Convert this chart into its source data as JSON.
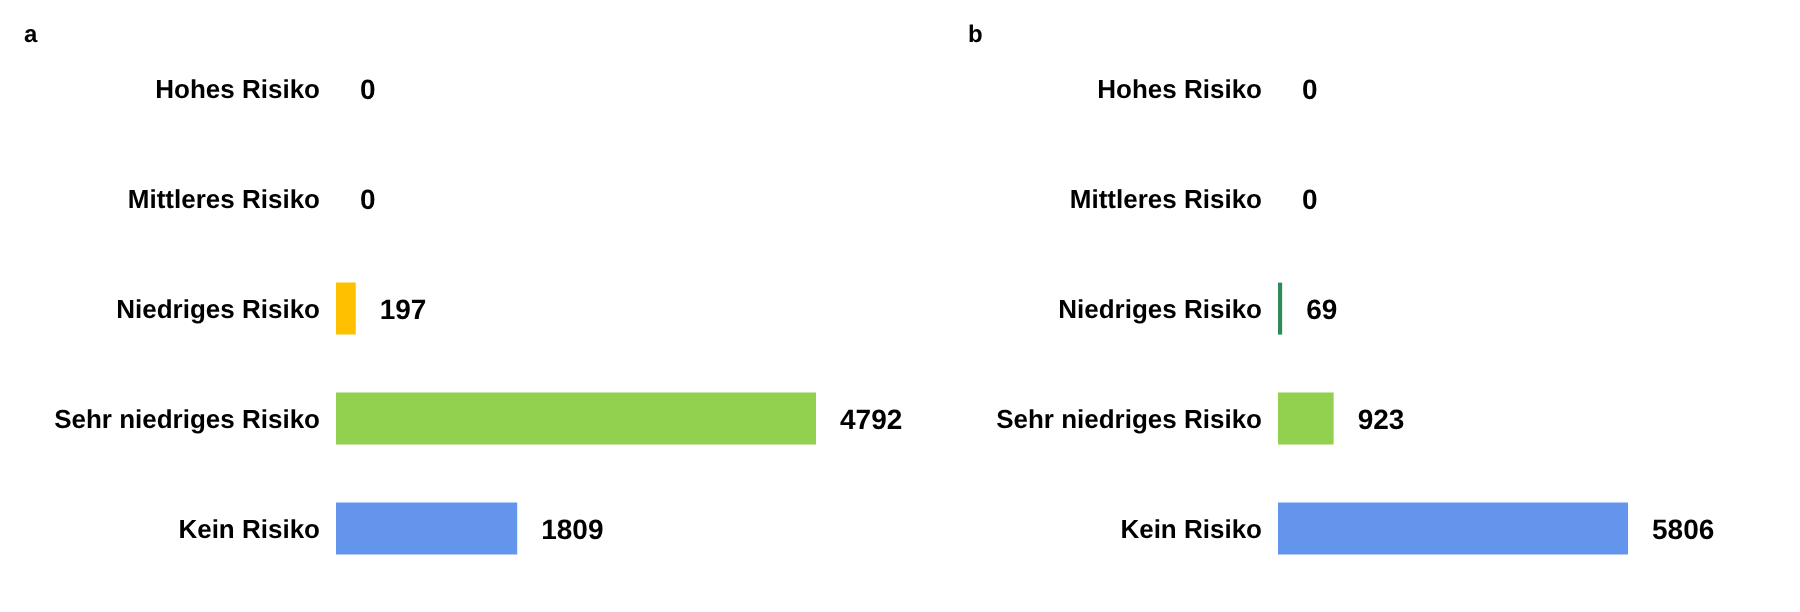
{
  "chart_data": [
    {
      "type": "bar",
      "title": "a",
      "orientation": "horizontal",
      "categories": [
        "Hohes Risiko",
        "Mittleres Risiko",
        "Niedriges Risiko",
        "Sehr niedriges Risiko",
        "Kein Risiko"
      ],
      "values": [
        0,
        0,
        197,
        4792,
        1809
      ],
      "colors": [
        null,
        null,
        "#ffc000",
        "#92d050",
        "#6495ed"
      ],
      "data_labels": true
    },
    {
      "type": "bar",
      "title": "b",
      "orientation": "horizontal",
      "categories": [
        "Hohes Risiko",
        "Mittleres Risiko",
        "Niedriges Risiko",
        "Sehr niedriges Risiko",
        "Kein Risiko"
      ],
      "values": [
        0,
        0,
        69,
        923,
        5806
      ],
      "colors": [
        null,
        null,
        "#2e8b57",
        "#92d050",
        "#6495ed"
      ],
      "data_labels": true
    }
  ]
}
